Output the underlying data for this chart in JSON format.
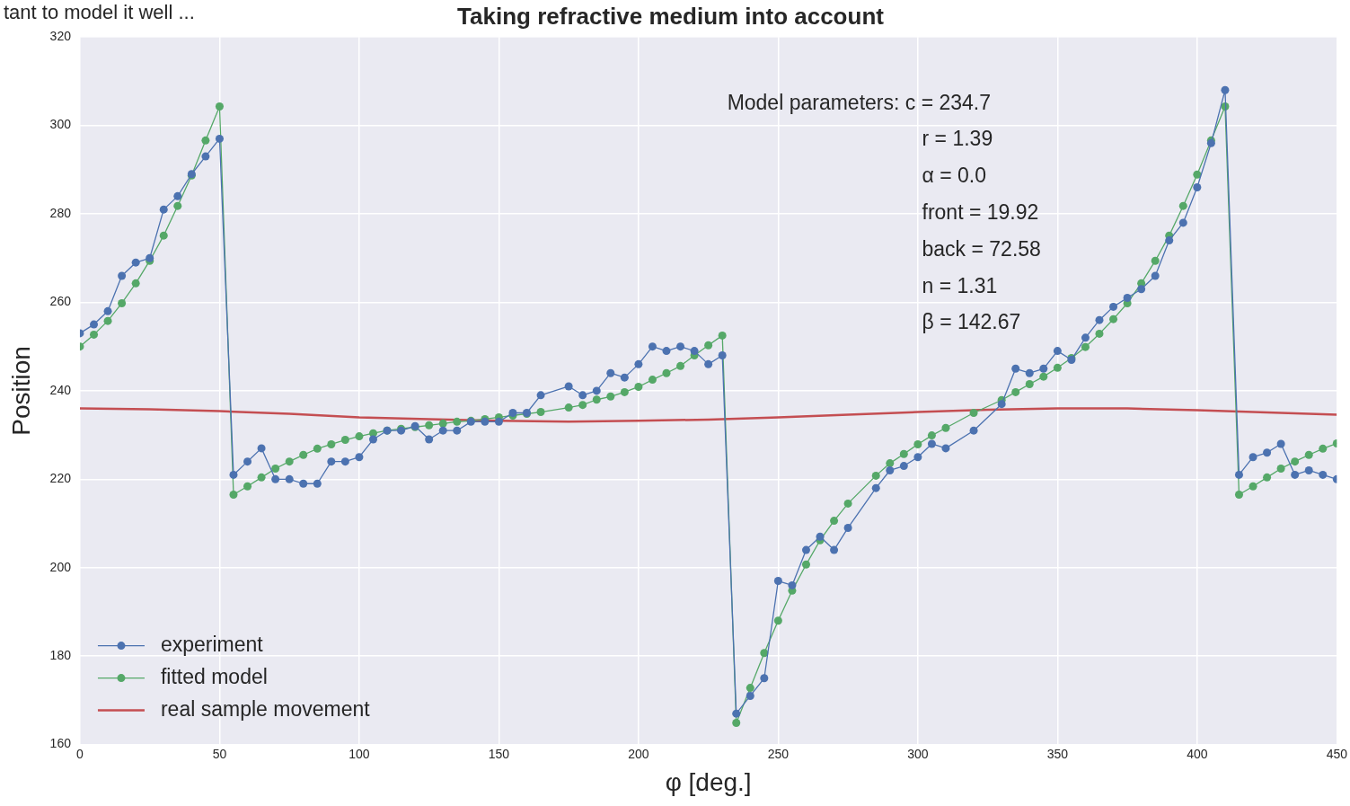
{
  "chart_data": {
    "type": "line",
    "title": "Taking refractive medium into account",
    "subtitle": "tant to model it well ...",
    "xlabel": "φ [deg.]",
    "ylabel": "Position",
    "x": [
      0,
      5,
      10,
      15,
      20,
      25,
      30,
      35,
      40,
      45,
      50,
      55,
      60,
      65,
      70,
      75,
      80,
      85,
      90,
      95,
      100,
      105,
      110,
      115,
      120,
      125,
      130,
      135,
      140,
      145,
      150,
      155,
      160,
      165,
      175,
      180,
      185,
      190,
      195,
      200,
      205,
      210,
      215,
      220,
      225,
      230,
      235,
      240,
      245,
      250,
      255,
      260,
      265,
      270,
      275,
      285,
      290,
      295,
      300,
      305,
      310,
      320,
      330,
      335,
      340,
      345,
      350,
      355,
      360,
      365,
      370,
      375,
      380,
      385,
      390,
      395,
      400,
      405,
      410,
      415,
      420,
      425,
      430,
      435,
      440,
      445,
      450
    ],
    "series": [
      {
        "name": "experiment",
        "color": "#4c72b0",
        "marker": "circle",
        "values": [
          253,
          255,
          258,
          266,
          269,
          270,
          281,
          284,
          289,
          293,
          297,
          221,
          224,
          227,
          220,
          220,
          219,
          219,
          224,
          224,
          225,
          229,
          231,
          231,
          232,
          229,
          231,
          231,
          233,
          233,
          233,
          235,
          235,
          239,
          241,
          239,
          240,
          244,
          243,
          246,
          250,
          249,
          250,
          249,
          246,
          248,
          167,
          171,
          175,
          197,
          196,
          204,
          207,
          204,
          209,
          218,
          222,
          223,
          225,
          228,
          227,
          231,
          237,
          245,
          244,
          245,
          249,
          247,
          252,
          256,
          259,
          261,
          263,
          266,
          274,
          278,
          286,
          296,
          308,
          221,
          225,
          226,
          228,
          221,
          222,
          221,
          220
        ]
      },
      {
        "name": "fitted model",
        "color": "#55a868",
        "marker": "circle",
        "values": [
          250,
          252.7,
          255.8,
          259.8,
          264.3,
          269.4,
          275.1,
          281.8,
          288.7,
          296.6,
          304.3,
          216.5,
          218.4,
          220.4,
          222.4,
          224,
          225.5,
          226.9,
          227.9,
          228.9,
          229.7,
          230.4,
          231,
          231.4,
          231.8,
          232.2,
          232.6,
          233,
          233.2,
          233.6,
          234,
          234.4,
          234.8,
          235.2,
          236.2,
          236.8,
          238,
          238.7,
          239.7,
          240.9,
          242.5,
          244,
          245.6,
          248,
          250.3,
          252.5,
          164.9,
          172.8,
          180.7,
          188,
          194.8,
          200.7,
          206.2,
          210.6,
          214.5,
          220.8,
          223.6,
          225.7,
          227.9,
          229.9,
          231.6,
          235,
          237.9,
          239.7,
          241.5,
          243.2,
          245.2,
          247.4,
          249.9,
          252.9,
          256.2,
          259.8,
          264.3,
          269.4,
          275.1,
          281.8,
          288.9,
          296.6,
          304.3,
          216.5,
          218.4,
          220.4,
          222.4,
          224,
          225.5,
          226.9,
          228.1
        ]
      },
      {
        "name": "real sample movement",
        "color": "#c44e52",
        "marker": "none",
        "x": [
          0,
          25,
          50,
          75,
          100,
          125,
          150,
          175,
          200,
          225,
          250,
          275,
          300,
          325,
          350,
          375,
          400,
          425,
          450
        ],
        "values": [
          236,
          235.8,
          235.4,
          234.8,
          234,
          233.6,
          233.2,
          233,
          233.2,
          233.5,
          234,
          234.6,
          235.2,
          235.7,
          236,
          236,
          235.6,
          235.1,
          234.6
        ]
      }
    ],
    "xlim": [
      0,
      450
    ],
    "xticks": [
      0,
      50,
      100,
      150,
      200,
      250,
      300,
      350,
      400,
      450
    ],
    "ylim": [
      160,
      320
    ],
    "yticks": [
      160,
      180,
      200,
      220,
      240,
      260,
      280,
      300,
      320
    ],
    "grid": true,
    "legend": "bottom left",
    "line_style": "solid",
    "annotations": [
      "Model parameters: c = 234.7",
      "r = 1.39",
      "α = 0.0",
      "front = 19.92",
      "back = 72.58",
      "n = 1.31",
      "β = 142.67"
    ]
  }
}
